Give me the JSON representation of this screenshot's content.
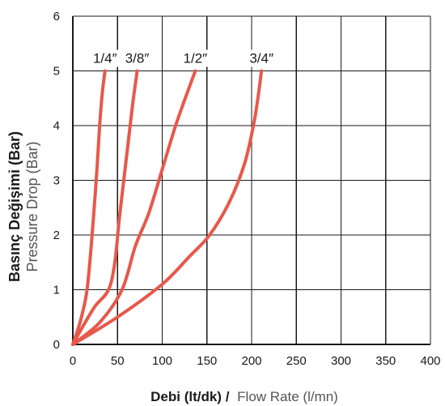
{
  "chart_data": {
    "type": "line",
    "xlabel_bold": "Debi (lt/dk) /",
    "xlabel_light": "Flow Rate (l/mn)",
    "ylabel_bold": "Basınç Değişimi (Bar)",
    "ylabel_light": "Pressure Drop (Bar)",
    "xlim": [
      0,
      400
    ],
    "ylim": [
      0,
      6
    ],
    "x_ticks": [
      0,
      50,
      100,
      150,
      200,
      250,
      300,
      350,
      400
    ],
    "y_ticks": [
      0,
      1,
      2,
      3,
      4,
      5,
      6
    ],
    "grid": true,
    "line_color": "#e8584a",
    "series": [
      {
        "name": "1/4″",
        "points": [
          [
            0,
            0
          ],
          [
            8,
            0.4
          ],
          [
            15,
            0.9
          ],
          [
            19,
            1.5
          ],
          [
            23,
            2.3
          ],
          [
            27,
            3.2
          ],
          [
            30,
            4.0
          ],
          [
            33,
            4.6
          ],
          [
            36,
            5.0
          ]
        ]
      },
      {
        "name": "3/8″",
        "points": [
          [
            0,
            0
          ],
          [
            12,
            0.35
          ],
          [
            25,
            0.7
          ],
          [
            40,
            1.0
          ],
          [
            47,
            1.5
          ],
          [
            52,
            2.3
          ],
          [
            57,
            3.0
          ],
          [
            62,
            3.7
          ],
          [
            67,
            4.4
          ],
          [
            72,
            5.0
          ]
        ]
      },
      {
        "name": "1/2″",
        "points": [
          [
            0,
            0
          ],
          [
            30,
            0.4
          ],
          [
            55,
            1.0
          ],
          [
            70,
            1.8
          ],
          [
            85,
            2.4
          ],
          [
            100,
            3.2
          ],
          [
            115,
            4.0
          ],
          [
            128,
            4.6
          ],
          [
            137,
            5.0
          ]
        ]
      },
      {
        "name": "3/4″",
        "points": [
          [
            0,
            0
          ],
          [
            50,
            0.5
          ],
          [
            100,
            1.1
          ],
          [
            130,
            1.6
          ],
          [
            153,
            2.0
          ],
          [
            175,
            2.6
          ],
          [
            192,
            3.3
          ],
          [
            202,
            4.0
          ],
          [
            207,
            4.5
          ],
          [
            211,
            5.0
          ]
        ]
      }
    ]
  }
}
